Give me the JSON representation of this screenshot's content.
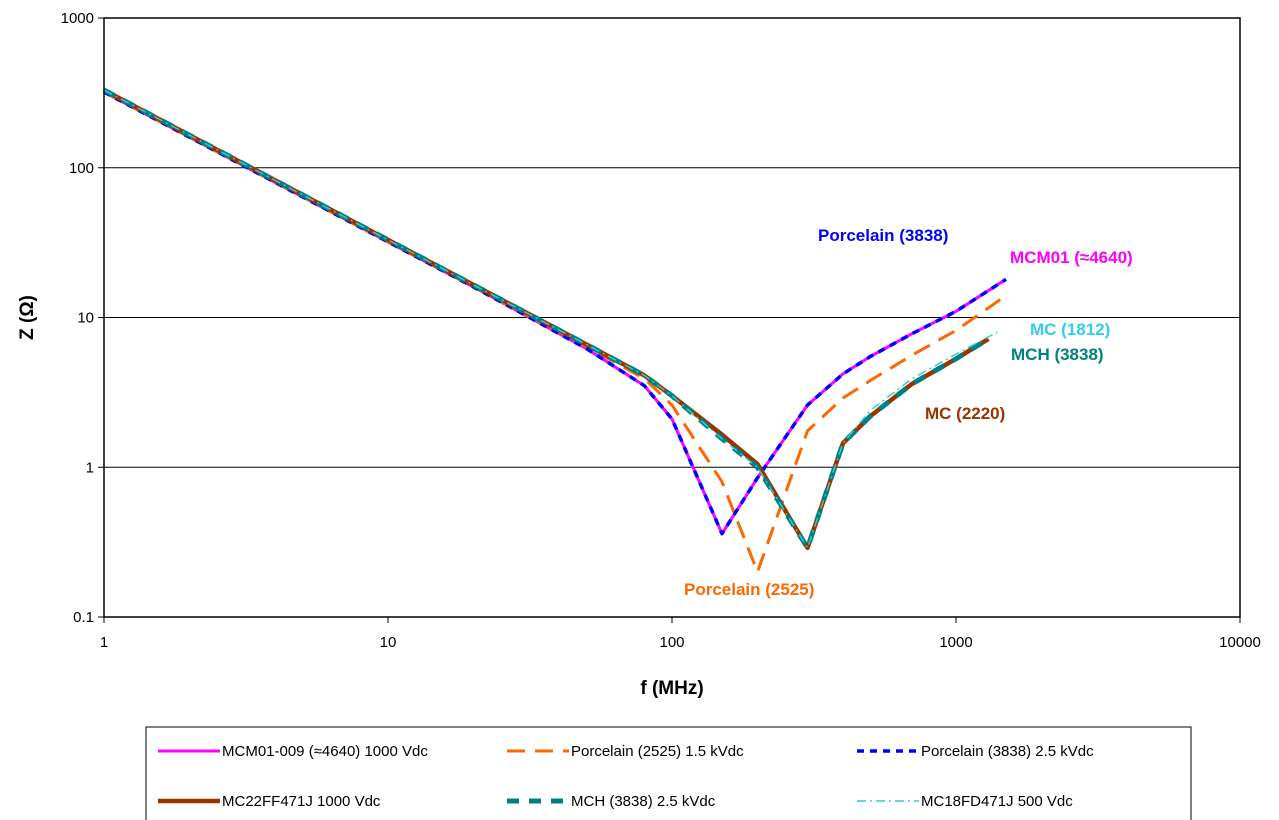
{
  "chart_data": {
    "type": "line",
    "xlabel": "f (MHz)",
    "ylabel": "Z (Ω)",
    "x_scale": "log",
    "y_scale": "log",
    "xlim": [
      1,
      10000
    ],
    "ylim": [
      0.1,
      1000
    ],
    "x_ticks": [
      "1",
      "10",
      "100",
      "1000",
      "10000"
    ],
    "y_ticks": [
      "0.1",
      "1",
      "10",
      "100",
      "1000"
    ],
    "grid": "horizontal major gridlines",
    "legend_position": "bottom",
    "series": [
      {
        "name": "MCM01-009 (≈4640) 1000 Vdc",
        "color": "#ff00ff",
        "style": "solid",
        "points": [
          [
            1,
            320
          ],
          [
            2,
            160
          ],
          [
            5,
            64
          ],
          [
            10,
            32
          ],
          [
            20,
            16
          ],
          [
            50,
            6.2
          ],
          [
            80,
            3.5
          ],
          [
            100,
            2.1
          ],
          [
            150,
            0.36
          ],
          [
            200,
            0.85
          ],
          [
            300,
            2.6
          ],
          [
            400,
            4.2
          ],
          [
            500,
            5.5
          ],
          [
            700,
            7.8
          ],
          [
            1000,
            11
          ],
          [
            1500,
            18
          ]
        ]
      },
      {
        "name": "Porcelain (2525) 1.5 kVdc",
        "color": "#ff6600",
        "style": "long-dash",
        "points": [
          [
            1,
            320
          ],
          [
            2,
            160
          ],
          [
            5,
            64
          ],
          [
            10,
            32
          ],
          [
            20,
            16
          ],
          [
            50,
            6.4
          ],
          [
            80,
            3.9
          ],
          [
            100,
            2.6
          ],
          [
            150,
            0.8
          ],
          [
            200,
            0.2
          ],
          [
            300,
            1.75
          ],
          [
            400,
            2.9
          ],
          [
            500,
            3.8
          ],
          [
            700,
            5.6
          ],
          [
            1000,
            8.2
          ],
          [
            1500,
            14
          ]
        ]
      },
      {
        "name": "Porcelain (3838) 2.5 kVdc",
        "color": "#0000ff",
        "style": "short-dash",
        "points": [
          [
            1,
            320
          ],
          [
            2,
            160
          ],
          [
            5,
            64
          ],
          [
            10,
            32
          ],
          [
            20,
            16
          ],
          [
            50,
            6.2
          ],
          [
            80,
            3.5
          ],
          [
            100,
            2.1
          ],
          [
            150,
            0.36
          ],
          [
            200,
            0.85
          ],
          [
            300,
            2.6
          ],
          [
            400,
            4.2
          ],
          [
            500,
            5.5
          ],
          [
            700,
            7.8
          ],
          [
            1000,
            11
          ],
          [
            1500,
            18
          ]
        ]
      },
      {
        "name": "MC22FF471J  1000 Vdc",
        "color": "#993300",
        "style": "solid",
        "points": [
          [
            1,
            330
          ],
          [
            2,
            165
          ],
          [
            5,
            66
          ],
          [
            10,
            33
          ],
          [
            20,
            16.5
          ],
          [
            50,
            6.6
          ],
          [
            80,
            4.1
          ],
          [
            100,
            3.0
          ],
          [
            150,
            1.65
          ],
          [
            200,
            1.05
          ],
          [
            300,
            0.29
          ],
          [
            400,
            1.45
          ],
          [
            500,
            2.2
          ],
          [
            700,
            3.6
          ],
          [
            1000,
            5.3
          ],
          [
            1300,
            7.2
          ]
        ]
      },
      {
        "name": "MCH (3838) 2.5 kVdc",
        "color": "#008080",
        "style": "dash",
        "points": [
          [
            1,
            330
          ],
          [
            2,
            165
          ],
          [
            5,
            66
          ],
          [
            10,
            33
          ],
          [
            20,
            16.5
          ],
          [
            50,
            6.6
          ],
          [
            80,
            4.1
          ],
          [
            100,
            3.0
          ],
          [
            150,
            1.55
          ],
          [
            200,
            1.0
          ],
          [
            300,
            0.29
          ],
          [
            400,
            1.45
          ],
          [
            500,
            2.2
          ],
          [
            700,
            3.6
          ],
          [
            1000,
            5.3
          ],
          [
            1300,
            7.2
          ]
        ]
      },
      {
        "name": "MC18FD471J  500 Vdc",
        "color": "#33cccc",
        "style": "dash-dot",
        "points": [
          [
            1,
            330
          ],
          [
            2,
            165
          ],
          [
            5,
            66
          ],
          [
            10,
            33
          ],
          [
            20,
            16.5
          ],
          [
            50,
            6.6
          ],
          [
            80,
            4.1
          ],
          [
            100,
            3.0
          ],
          [
            150,
            1.55
          ],
          [
            200,
            1.0
          ],
          [
            300,
            0.29
          ],
          [
            400,
            1.45
          ],
          [
            500,
            2.4
          ],
          [
            700,
            3.9
          ],
          [
            1000,
            5.7
          ],
          [
            1400,
            8.0
          ]
        ]
      }
    ],
    "annotations": [
      {
        "text": "Porcelain (3838)",
        "color": "#0000ff"
      },
      {
        "text": "MCM01 (≈4640)",
        "color": "#ff00ff"
      },
      {
        "text": "MC (1812)",
        "color": "#33ccee"
      },
      {
        "text": "MCH (3838)",
        "color": "#008080"
      },
      {
        "text": "MC (2220)",
        "color": "#993300"
      },
      {
        "text": "Porcelain (2525)",
        "color": "#ff6600"
      }
    ]
  }
}
